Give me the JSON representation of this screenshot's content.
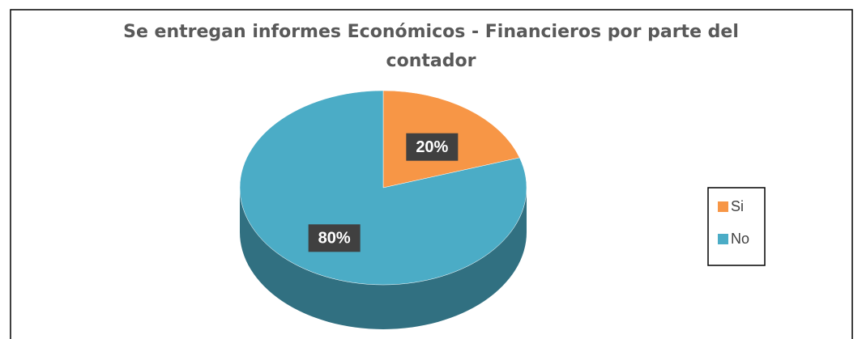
{
  "chart_data": {
    "type": "pie",
    "title": "Se entregan informes Económicos - Financieros por parte del contador",
    "categories": [
      "Si",
      "No"
    ],
    "values": [
      20,
      80
    ],
    "value_labels": [
      "20%",
      "80%"
    ],
    "colors": [
      "#f79646",
      "#4bacc6"
    ],
    "legend": "right"
  }
}
